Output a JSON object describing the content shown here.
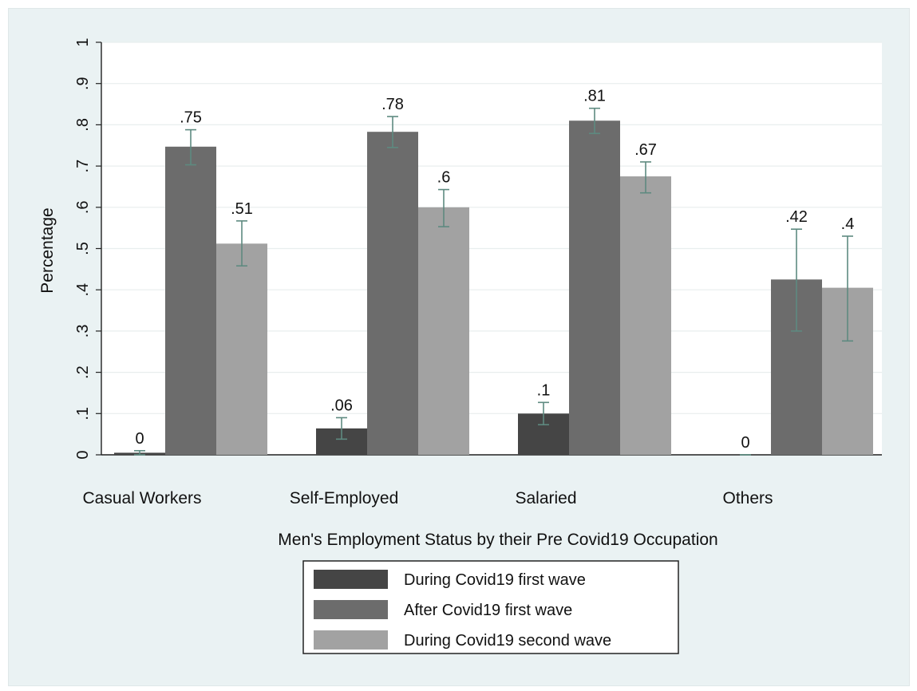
{
  "chart_data": {
    "type": "bar",
    "title": "",
    "xlabel": "Men's Employment Status by their Pre Covid19 Occupation",
    "ylabel": "Percentage",
    "ylim": [
      0,
      1
    ],
    "yticks": [
      0,
      0.1,
      0.2,
      0.3,
      0.4,
      0.5,
      0.6,
      0.7,
      0.8,
      0.9,
      1
    ],
    "ytick_labels": [
      "0",
      ".1",
      ".2",
      ".3",
      ".4",
      ".5",
      ".6",
      ".7",
      ".8",
      ".9",
      "1"
    ],
    "grid": true,
    "categories": [
      "Casual Workers",
      "Self-Employed",
      "Salaried",
      "Others"
    ],
    "series": [
      {
        "name": "During Covid19 first wave",
        "color": "#454545",
        "values": [
          0.005,
          0.064,
          0.1,
          0.0
        ],
        "labels": [
          "0",
          ".06",
          ".1",
          "0"
        ],
        "ci_low": [
          0.0,
          0.038,
          0.073,
          0.0
        ],
        "ci_high": [
          0.01,
          0.09,
          0.127,
          0.0
        ]
      },
      {
        "name": "After Covid19 first wave",
        "color": "#6c6c6c",
        "values": [
          0.747,
          0.783,
          0.81,
          0.425
        ],
        "labels": [
          ".75",
          ".78",
          ".81",
          ".42"
        ],
        "ci_low": [
          0.703,
          0.745,
          0.779,
          0.3
        ],
        "ci_high": [
          0.788,
          0.82,
          0.84,
          0.547
        ]
      },
      {
        "name": "During Covid19 second wave",
        "color": "#a2a2a2",
        "values": [
          0.512,
          0.6,
          0.675,
          0.405
        ],
        "labels": [
          ".51",
          ".6",
          ".67",
          ".4"
        ],
        "ci_low": [
          0.458,
          0.553,
          0.635,
          0.276
        ],
        "ci_high": [
          0.567,
          0.643,
          0.71,
          0.53
        ]
      }
    ],
    "legend": {
      "position": "bottom-center",
      "entries": [
        "During Covid19 first wave",
        "After Covid19 first wave",
        "During Covid19 second wave"
      ]
    },
    "errorbar_color": "#5e8a80",
    "grid_color": "#e8eeee",
    "plot_background": "#ffffff",
    "frame_background": "#eaf2f3"
  }
}
